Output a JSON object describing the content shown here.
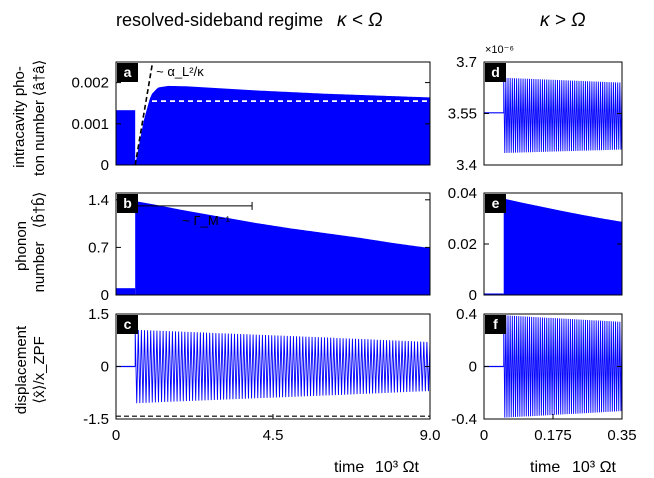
{
  "header": {
    "left_text": "resolved-sideband regime",
    "left_math": "κ < Ω",
    "right_math": "κ > Ω"
  },
  "row_labels": {
    "top_line1": "intracavity pho-",
    "top_line2": "ton number",
    "top_math": "⟨â†â⟩",
    "middle_line1": "phonon",
    "middle_line2": "number",
    "middle_math": "⟨b̂†b̂⟩",
    "bottom_line1": "displacement",
    "bottom_math": "⟨x̂⟩/x_ZPF"
  },
  "x_axis": {
    "left_label": "time",
    "left_units": "10³ Ωt",
    "right_label": "time",
    "right_units": "10³ Ωt"
  },
  "colors": {
    "signal": "#0000ff",
    "reference": "#000000",
    "fit_line": "#ffffff",
    "badge_bg": "#000000",
    "badge_text": "#ffffff"
  },
  "chart_data": [
    {
      "panel": "a",
      "type": "area",
      "description_series": "photon number envelope",
      "xlim": [
        0,
        9.0
      ],
      "ylim": [
        0,
        0.0025
      ],
      "yticks": [
        "0",
        "0.001",
        "0.002"
      ],
      "xticks": [],
      "annotation": "~ α_L²/κ",
      "pre_pump_level": 0.00133,
      "switch_on_time": 0.55,
      "x": [
        0.55,
        0.8,
        1.0,
        1.2,
        1.5,
        2.0,
        3.0,
        4.0,
        5.0,
        6.0,
        7.0,
        8.0,
        9.0
      ],
      "upper": [
        0.0,
        0.0011,
        0.0017,
        0.00188,
        0.00192,
        0.00191,
        0.00186,
        0.00181,
        0.00177,
        0.00173,
        0.0017,
        0.00167,
        0.00164
      ],
      "reference_line": {
        "style": "white-dashed",
        "y": 0.00155
      },
      "slope_line": {
        "style": "black-dashed",
        "x": [
          0.55,
          1.05
        ],
        "y": [
          0.0,
          0.0025
        ]
      }
    },
    {
      "panel": "b",
      "type": "area",
      "xlim": [
        0,
        9.0
      ],
      "ylim": [
        0,
        1.5
      ],
      "yticks": [
        "0",
        "0.7",
        "1.4"
      ],
      "xticks": [],
      "annotation": "~ Γ_M⁻¹",
      "pre_pump_level": 0.1,
      "switch_on_time": 0.55,
      "x": [
        0.55,
        1.0,
        2.0,
        3.0,
        4.0,
        5.0,
        6.0,
        7.0,
        8.0,
        9.0
      ],
      "upper": [
        1.38,
        1.34,
        1.24,
        1.15,
        1.06,
        0.98,
        0.91,
        0.84,
        0.76,
        0.69
      ],
      "lifetime_bar": {
        "x": [
          0.55,
          3.9
        ],
        "y": 1.31
      }
    },
    {
      "panel": "c",
      "type": "line",
      "xlim": [
        0,
        9.0
      ],
      "ylim": [
        -1.5,
        1.5
      ],
      "yticks": [
        "1.5",
        "0",
        "-1.5"
      ],
      "xticks": [
        "0",
        "4.5",
        "9.0"
      ],
      "switch_on_time": 0.55,
      "oscillation_cycles": 95,
      "envelope": {
        "x": [
          0.55,
          3.0,
          6.0,
          9.0
        ],
        "amp": [
          1.05,
          0.95,
          0.83,
          0.7
        ]
      },
      "reference_line": {
        "style": "black-dashed",
        "y": -1.42
      }
    },
    {
      "panel": "d",
      "type": "line",
      "xlim": [
        0,
        0.35
      ],
      "ylim": [
        3.4,
        3.7
      ],
      "y_scale_label": "×10⁻⁶",
      "yticks": [
        "3.7",
        "3.55",
        "3.4"
      ],
      "xticks": [],
      "pre_pump_level": 3.552,
      "switch_on_time": 0.05,
      "oscillation_cycles": 55,
      "upper": [
        3.654,
        3.64
      ],
      "lower": [
        3.435,
        3.445
      ]
    },
    {
      "panel": "e",
      "type": "area",
      "xlim": [
        0,
        0.35
      ],
      "ylim": [
        0,
        0.04
      ],
      "yticks": [
        "0",
        "0.02",
        "0.04"
      ],
      "xticks": [],
      "pre_pump_level": 0.0006,
      "switch_on_time": 0.05,
      "x": [
        0.05,
        0.1,
        0.15,
        0.2,
        0.25,
        0.3,
        0.35
      ],
      "upper": [
        0.0378,
        0.0361,
        0.0345,
        0.0329,
        0.0314,
        0.03,
        0.0287
      ]
    },
    {
      "panel": "f",
      "type": "line",
      "xlim": [
        0,
        0.35
      ],
      "ylim": [
        -0.4,
        0.4
      ],
      "yticks": [
        "0.4",
        "0",
        "-0.4"
      ],
      "xticks": [
        "0",
        "0.175",
        "0.35"
      ],
      "switch_on_time": 0.05,
      "oscillation_cycles": 55,
      "envelope": {
        "x": [
          0.05,
          0.35
        ],
        "amp": [
          0.39,
          0.34
        ]
      }
    }
  ]
}
